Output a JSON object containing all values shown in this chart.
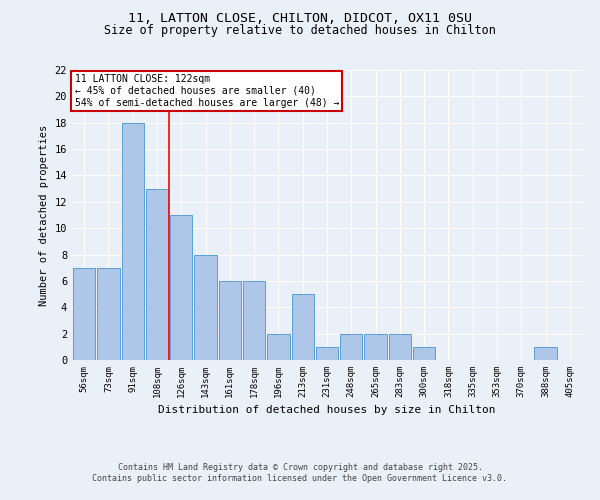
{
  "title": "11, LATTON CLOSE, CHILTON, DIDCOT, OX11 0SU",
  "subtitle": "Size of property relative to detached houses in Chilton",
  "xlabel": "Distribution of detached houses by size in Chilton",
  "ylabel": "Number of detached properties",
  "categories": [
    "56sqm",
    "73sqm",
    "91sqm",
    "108sqm",
    "126sqm",
    "143sqm",
    "161sqm",
    "178sqm",
    "196sqm",
    "213sqm",
    "231sqm",
    "248sqm",
    "265sqm",
    "283sqm",
    "300sqm",
    "318sqm",
    "335sqm",
    "353sqm",
    "370sqm",
    "388sqm",
    "405sqm"
  ],
  "values": [
    7,
    7,
    18,
    13,
    11,
    8,
    6,
    6,
    2,
    5,
    1,
    2,
    2,
    2,
    1,
    0,
    0,
    0,
    0,
    1,
    0
  ],
  "bar_color": "#aec6e8",
  "bar_edge_color": "#5a9fd4",
  "annotation_line1": "11 LATTON CLOSE: 122sqm",
  "annotation_line2": "← 45% of detached houses are smaller (40)",
  "annotation_line3": "54% of semi-detached houses are larger (48) →",
  "ylim": [
    0,
    22
  ],
  "yticks": [
    0,
    2,
    4,
    6,
    8,
    10,
    12,
    14,
    16,
    18,
    20,
    22
  ],
  "background_color": "#eaf0f8",
  "plot_background_color": "#eaf0f8",
  "grid_color": "#ffffff",
  "footer_line1": "Contains HM Land Registry data © Crown copyright and database right 2025.",
  "footer_line2": "Contains public sector information licensed under the Open Government Licence v3.0.",
  "title_fontsize": 9.5,
  "subtitle_fontsize": 8.5,
  "annotation_box_color": "#ffffff",
  "annotation_box_edge": "#cc0000"
}
